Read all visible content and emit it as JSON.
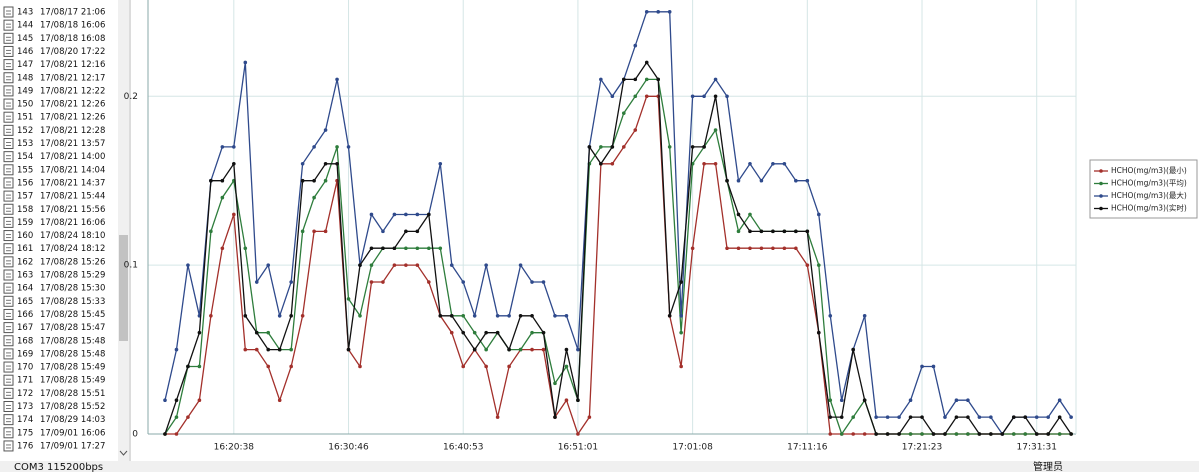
{
  "records": [
    {
      "id": "143",
      "time": "17/08/17 21:06"
    },
    {
      "id": "144",
      "time": "17/08/18 16:06"
    },
    {
      "id": "145",
      "time": "17/08/18 16:08"
    },
    {
      "id": "146",
      "time": "17/08/20 17:22"
    },
    {
      "id": "147",
      "time": "17/08/21 12:16"
    },
    {
      "id": "148",
      "time": "17/08/21 12:17"
    },
    {
      "id": "149",
      "time": "17/08/21 12:22"
    },
    {
      "id": "150",
      "time": "17/08/21 12:26"
    },
    {
      "id": "151",
      "time": "17/08/21 12:26"
    },
    {
      "id": "152",
      "time": "17/08/21 12:28"
    },
    {
      "id": "153",
      "time": "17/08/21 13:57"
    },
    {
      "id": "154",
      "time": "17/08/21 14:00"
    },
    {
      "id": "155",
      "time": "17/08/21 14:04"
    },
    {
      "id": "156",
      "time": "17/08/21 14:37"
    },
    {
      "id": "157",
      "time": "17/08/21 15:44"
    },
    {
      "id": "158",
      "time": "17/08/21 15:56"
    },
    {
      "id": "159",
      "time": "17/08/21 16:06"
    },
    {
      "id": "160",
      "time": "17/08/24 18:10"
    },
    {
      "id": "161",
      "time": "17/08/24 18:12"
    },
    {
      "id": "162",
      "time": "17/08/28 15:26"
    },
    {
      "id": "163",
      "time": "17/08/28 15:29"
    },
    {
      "id": "164",
      "time": "17/08/28 15:30"
    },
    {
      "id": "165",
      "time": "17/08/28 15:33"
    },
    {
      "id": "166",
      "time": "17/08/28 15:45"
    },
    {
      "id": "167",
      "time": "17/08/28 15:47"
    },
    {
      "id": "168",
      "time": "17/08/28 15:48"
    },
    {
      "id": "169",
      "time": "17/08/28 15:48"
    },
    {
      "id": "170",
      "time": "17/08/28 15:49"
    },
    {
      "id": "171",
      "time": "17/08/28 15:49"
    },
    {
      "id": "172",
      "time": "17/08/28 15:51"
    },
    {
      "id": "173",
      "time": "17/08/28 15:52"
    },
    {
      "id": "174",
      "time": "17/08/29 14:03"
    },
    {
      "id": "175",
      "time": "17/09/01 16:06"
    },
    {
      "id": "176",
      "time": "17/09/01 17:27"
    }
  ],
  "chart_data": {
    "type": "line",
    "categories": [
      null,
      null,
      null,
      null,
      null,
      null,
      "16:20:38",
      null,
      null,
      null,
      null,
      null,
      null,
      null,
      null,
      null,
      "16:30:46",
      null,
      null,
      null,
      null,
      null,
      null,
      null,
      null,
      null,
      "16:40:53",
      null,
      null,
      null,
      null,
      null,
      null,
      null,
      null,
      null,
      "16:51:01",
      null,
      null,
      null,
      null,
      null,
      null,
      null,
      null,
      null,
      "17:01:08",
      null,
      null,
      null,
      null,
      null,
      null,
      null,
      null,
      null,
      "17:11:16",
      null,
      null,
      null,
      null,
      null,
      null,
      null,
      null,
      null,
      "17:21:23",
      null,
      null,
      null,
      null,
      null,
      null,
      null,
      null,
      null,
      "17:31:31",
      null,
      null,
      null
    ],
    "series": [
      {
        "name": "HCHO(mg/m3)(最小)",
        "color": "#a3302b",
        "values": [
          0,
          0,
          0.01,
          0.02,
          0.07,
          0.11,
          0.13,
          0.05,
          0.05,
          0.04,
          0.02,
          0.04,
          0.07,
          0.12,
          0.12,
          0.15,
          0.05,
          0.04,
          0.09,
          0.09,
          0.1,
          0.1,
          0.1,
          0.09,
          0.07,
          0.06,
          0.04,
          0.05,
          0.04,
          0.01,
          0.04,
          0.05,
          0.05,
          0.05,
          0.01,
          0.02,
          0,
          0.01,
          0.16,
          0.16,
          0.17,
          0.18,
          0.2,
          0.2,
          0.07,
          0.04,
          0.11,
          0.16,
          0.16,
          0.11,
          0.11,
          0.11,
          0.11,
          0.11,
          0.11,
          0.11,
          0.1,
          0.06,
          0,
          0,
          0,
          0,
          0,
          0,
          0,
          0,
          0,
          0,
          0,
          0,
          0,
          0,
          0,
          0,
          0,
          0,
          0,
          0,
          0,
          0
        ]
      },
      {
        "name": "HCHO(mg/m3)(平均)",
        "color": "#2e7d3c",
        "values": [
          0,
          0.01,
          0.04,
          0.04,
          0.12,
          0.14,
          0.15,
          0.11,
          0.06,
          0.06,
          0.05,
          0.05,
          0.12,
          0.14,
          0.15,
          0.17,
          0.08,
          0.07,
          0.1,
          0.11,
          0.11,
          0.11,
          0.11,
          0.11,
          0.11,
          0.07,
          0.07,
          0.06,
          0.05,
          0.06,
          0.05,
          0.05,
          0.06,
          0.06,
          0.03,
          0.04,
          0.02,
          0.16,
          0.17,
          0.17,
          0.19,
          0.2,
          0.21,
          0.21,
          0.17,
          0.06,
          0.16,
          0.17,
          0.18,
          0.15,
          0.12,
          0.13,
          0.12,
          0.12,
          0.12,
          0.12,
          0.12,
          0.1,
          0.02,
          0,
          0.01,
          0.02,
          0,
          0,
          0,
          0,
          0,
          0,
          0,
          0,
          0,
          0,
          0,
          0,
          0,
          0,
          0,
          0,
          0,
          0
        ]
      },
      {
        "name": "HCHO(mg/m3)(最大)",
        "color": "#2f4a8c",
        "values": [
          0.02,
          0.05,
          0.1,
          0.07,
          0.15,
          0.17,
          0.17,
          0.22,
          0.09,
          0.1,
          0.07,
          0.09,
          0.16,
          0.17,
          0.18,
          0.21,
          0.17,
          0.1,
          0.13,
          0.12,
          0.13,
          0.13,
          0.13,
          0.13,
          0.16,
          0.1,
          0.09,
          0.07,
          0.1,
          0.07,
          0.07,
          0.1,
          0.09,
          0.09,
          0.07,
          0.07,
          0.05,
          0.17,
          0.21,
          0.2,
          0.21,
          0.23,
          0.25,
          0.25,
          0.25,
          0.07,
          0.2,
          0.2,
          0.21,
          0.2,
          0.15,
          0.16,
          0.15,
          0.16,
          0.16,
          0.15,
          0.15,
          0.13,
          0.07,
          0.02,
          0.05,
          0.07,
          0.01,
          0.01,
          0.01,
          0.02,
          0.04,
          0.04,
          0.01,
          0.02,
          0.02,
          0.01,
          0.01,
          0,
          0.01,
          0.01,
          0.01,
          0.01,
          0.02,
          0.01
        ]
      },
      {
        "name": "HCHO(mg/m3)(实时)",
        "color": "#111111",
        "values": [
          0,
          0.02,
          0.04,
          0.06,
          0.15,
          0.15,
          0.16,
          0.07,
          0.06,
          0.05,
          0.05,
          0.07,
          0.15,
          0.15,
          0.16,
          0.16,
          0.05,
          0.1,
          0.11,
          0.11,
          0.11,
          0.12,
          0.12,
          0.13,
          0.07,
          0.07,
          0.06,
          0.05,
          0.06,
          0.06,
          0.05,
          0.07,
          0.07,
          0.06,
          0.01,
          0.05,
          0.02,
          0.17,
          0.16,
          0.17,
          0.21,
          0.21,
          0.22,
          0.21,
          0.07,
          0.09,
          0.17,
          0.17,
          0.2,
          0.15,
          0.13,
          0.12,
          0.12,
          0.12,
          0.12,
          0.12,
          0.12,
          0.06,
          0.01,
          0.01,
          0.05,
          0.02,
          0,
          0,
          0,
          0.01,
          0.01,
          0,
          0,
          0.01,
          0.01,
          0,
          0,
          0,
          0.01,
          0.01,
          0,
          0,
          0.01,
          0
        ]
      }
    ],
    "ylim": [
      0,
      0.257
    ],
    "yticks": [
      0,
      0.1,
      0.2
    ],
    "grid": true,
    "legend": "right"
  },
  "status": {
    "port": "COM3 115200bps",
    "user": "管理员"
  }
}
